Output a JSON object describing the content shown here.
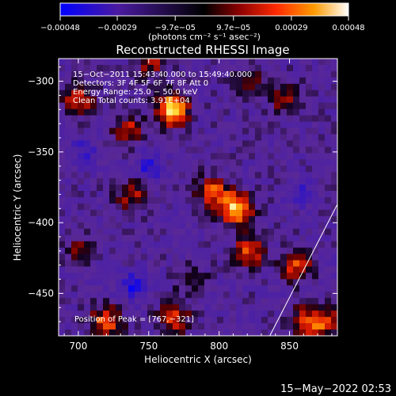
{
  "chart_data": {
    "type": "heatmap",
    "title": "Reconstructed RHESSI Image",
    "xlabel": "Heliocentric X (arcsec)",
    "ylabel": "Heliocentric Y (arcsec)",
    "xlim": [
      686,
      884
    ],
    "ylim": [
      -480,
      -284
    ],
    "xticks": [
      700,
      750,
      800,
      850
    ],
    "xtick_labels": [
      "700",
      "750",
      "800",
      "850"
    ],
    "yticks": [
      -300,
      -350,
      -400,
      -450
    ],
    "ytick_labels": [
      "−300",
      "−350",
      "−400",
      "−450"
    ],
    "colorbar": {
      "range": [
        -0.00048,
        0.00048
      ],
      "tick_values": [
        -0.00048,
        -0.00029,
        -9.7e-05,
        9.7e-05,
        0.00029,
        0.00048
      ],
      "tick_labels": [
        "−0.00048",
        "−0.00029",
        "−9.7e−05",
        "9.7e−05",
        "0.00029",
        "0.00048"
      ],
      "units_label": "(photons cm⁻² s⁻¹ asec⁻²)",
      "colors": [
        "#0000ff",
        "#4a1aa0",
        "#000000",
        "#7a0000",
        "#ff2a00",
        "#ff9a00",
        "#ffff9a",
        "#ffffff"
      ]
    },
    "info_lines": [
      "15−Oct−2011 15:43:40.000 to 15:49:40.000",
      "Detectors: 3F 4F 5F 6F 7F 8F  Att 0",
      "Energy Range: 25.0 − 50.0 keV",
      "Clean     Total counts: 3.91E+04"
    ],
    "peak_label": "Position of Peak = [767,−321]",
    "peak": {
      "x": 767,
      "y": -321
    },
    "limb_line": [
      {
        "x": 836,
        "y": -480
      },
      {
        "x": 884,
        "y": -387
      }
    ],
    "sources": [
      {
        "x": 767,
        "y": -320,
        "intensity": 1.0
      },
      {
        "x": 812,
        "y": -390,
        "intensity": 0.95
      },
      {
        "x": 795,
        "y": -378,
        "intensity": 0.6
      },
      {
        "x": 700,
        "y": -312,
        "intensity": 0.55
      },
      {
        "x": 735,
        "y": -335,
        "intensity": 0.5
      },
      {
        "x": 738,
        "y": -380,
        "intensity": 0.45
      },
      {
        "x": 720,
        "y": -470,
        "intensity": 0.65
      },
      {
        "x": 768,
        "y": -468,
        "intensity": 0.55
      },
      {
        "x": 822,
        "y": -420,
        "intensity": 0.6
      },
      {
        "x": 855,
        "y": -430,
        "intensity": 0.55
      },
      {
        "x": 860,
        "y": -470,
        "intensity": 0.5
      },
      {
        "x": 848,
        "y": -312,
        "intensity": 0.45
      },
      {
        "x": 820,
        "y": -300,
        "intensity": 0.35
      },
      {
        "x": 700,
        "y": -420,
        "intensity": 0.35
      },
      {
        "x": 780,
        "y": -440,
        "intensity": 0.3
      },
      {
        "x": 752,
        "y": -288,
        "intensity": 0.4
      },
      {
        "x": 875,
        "y": -470,
        "intensity": 0.55
      }
    ],
    "negative_regions": [
      {
        "x": 740,
        "y": -445,
        "intensity": 0.6
      },
      {
        "x": 750,
        "y": -360,
        "intensity": 0.5
      },
      {
        "x": 705,
        "y": -350,
        "intensity": 0.4
      },
      {
        "x": 860,
        "y": -380,
        "intensity": 0.35
      }
    ]
  },
  "footer": {
    "timestamp": "15−May−2022 02:53"
  }
}
